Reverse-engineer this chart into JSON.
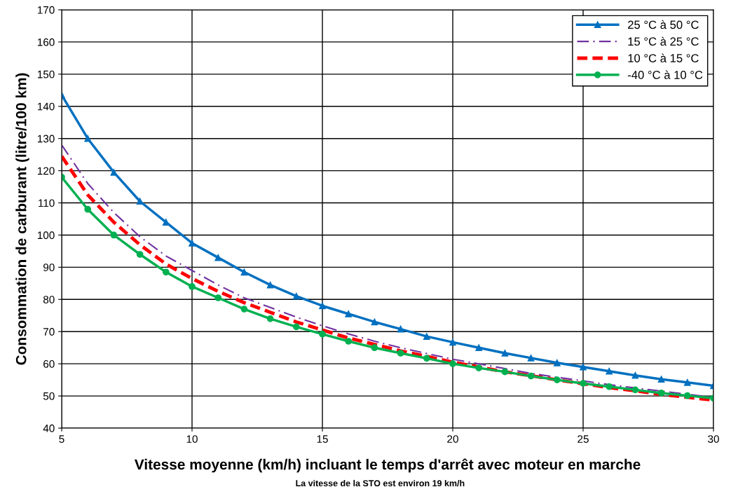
{
  "chart_data": {
    "type": "line",
    "xlabel": "Vitesse moyenne (km/h) incluant le temps d'arrêt avec moteur en marche",
    "ylabel": "Consommation de carburant (litre/100 km)",
    "annotations": [
      "La vitesse de la STO est environ 19 km/h"
    ],
    "x": [
      5,
      6,
      7,
      8,
      9,
      10,
      11,
      12,
      13,
      14,
      15,
      16,
      17,
      18,
      19,
      20,
      21,
      22,
      23,
      24,
      25,
      26,
      27,
      28,
      29,
      30
    ],
    "series": [
      {
        "name": "25 °C à 50 °C",
        "color": "#0070c0",
        "marker": "triangle",
        "line_style": "solid",
        "values": [
          143.5,
          130,
          119.5,
          110.5,
          104,
          97.5,
          93,
          88.5,
          84.5,
          81,
          78,
          75.5,
          73,
          70.8,
          68.5,
          66.7,
          65,
          63.3,
          61.8,
          60.3,
          59,
          57.7,
          56.4,
          55.2,
          54.2,
          53.2
        ]
      },
      {
        "name": "15 °C à 25 °C",
        "color": "#7030a0",
        "marker": "none",
        "line_style": "dashdot",
        "values": [
          128,
          116,
          107,
          99.5,
          93.5,
          89,
          84.5,
          80.5,
          77.5,
          74.5,
          71.8,
          69.3,
          67,
          65,
          63.2,
          61.4,
          60,
          58.5,
          57,
          55.8,
          54.7,
          53.5,
          52.5,
          51.5,
          50.5,
          49.6
        ]
      },
      {
        "name": "10 °C à 15 °C",
        "color": "#ff0000",
        "marker": "none",
        "line_style": "dashed",
        "values": [
          124.5,
          112.5,
          104,
          97,
          91,
          86.5,
          82.5,
          79,
          76,
          73,
          70.5,
          68,
          66,
          64,
          62.3,
          60.5,
          59,
          57.5,
          56.3,
          55,
          53.8,
          52.6,
          51.6,
          50.5,
          49.6,
          48.7
        ]
      },
      {
        "name": "-40 °C à 10 °C",
        "color": "#00b050",
        "marker": "circle",
        "line_style": "solid",
        "values": [
          118,
          108,
          100,
          94,
          88.5,
          84,
          80.5,
          77,
          74,
          71.5,
          69.2,
          67,
          65,
          63.3,
          61.7,
          60,
          58.7,
          57.5,
          56.2,
          55,
          53.9,
          52.9,
          51.9,
          50.9,
          50.1,
          49.3
        ]
      }
    ],
    "xlim": [
      5,
      30
    ],
    "xticks": [
      5,
      10,
      15,
      20,
      25,
      30
    ],
    "ylim": [
      40,
      170
    ],
    "yticks": [
      40,
      50,
      60,
      70,
      80,
      90,
      100,
      110,
      120,
      130,
      140,
      150,
      160,
      170
    ],
    "grid": true,
    "legend": "top right"
  }
}
